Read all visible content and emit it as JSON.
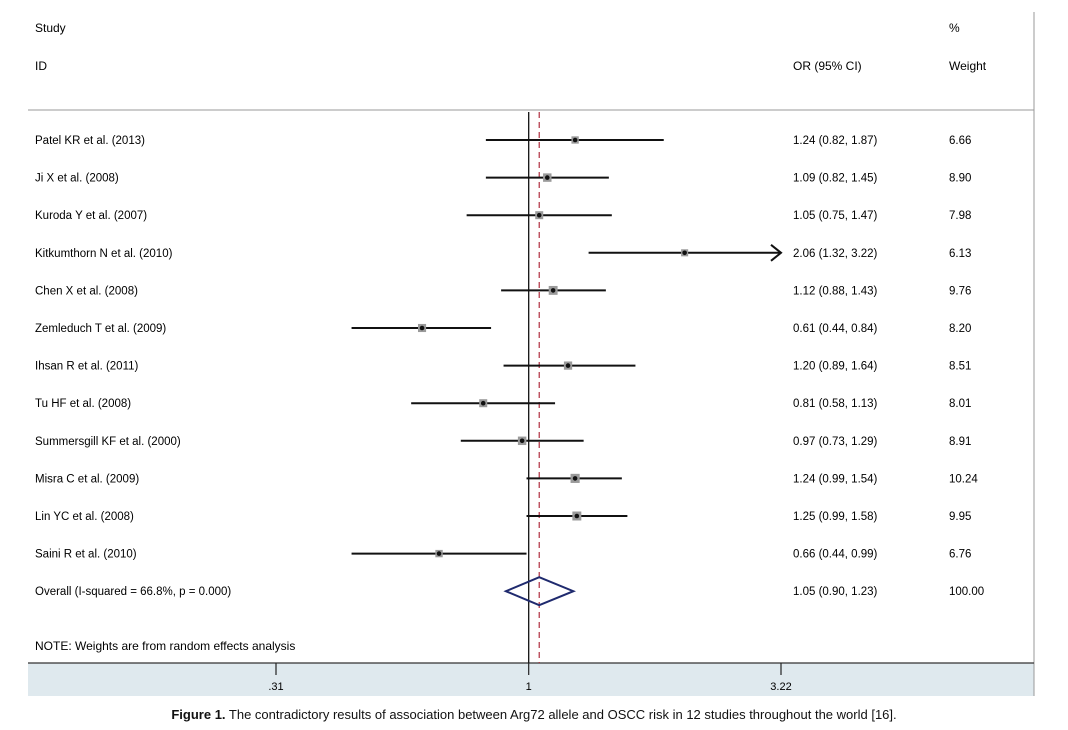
{
  "header": {
    "study_label": "Study",
    "id_label": "ID",
    "pct_label": "%",
    "or_label": "OR (95% CI)",
    "weight_label": "Weight"
  },
  "chart_data": {
    "type": "forest",
    "scale": "log",
    "x_ticks": [
      {
        "value": 0.31,
        "label": ".31"
      },
      {
        "value": 1,
        "label": "1"
      },
      {
        "value": 3.22,
        "label": "3.22"
      }
    ],
    "xlim": [
      0.31,
      3.22
    ],
    "null_line": 1,
    "overall_line": 1.05,
    "studies": [
      {
        "name": "Patel KR et al. (2013)",
        "or": 1.24,
        "lo": 0.82,
        "hi": 1.87,
        "or_text": "1.24 (0.82, 1.87)",
        "weight": 6.66,
        "weight_text": "6.66"
      },
      {
        "name": "Ji X et al. (2008)",
        "or": 1.09,
        "lo": 0.82,
        "hi": 1.45,
        "or_text": "1.09 (0.82, 1.45)",
        "weight": 8.9,
        "weight_text": "8.90"
      },
      {
        "name": "Kuroda Y et al. (2007)",
        "or": 1.05,
        "lo": 0.75,
        "hi": 1.47,
        "or_text": "1.05 (0.75, 1.47)",
        "weight": 7.98,
        "weight_text": "7.98"
      },
      {
        "name": "Kitkumthorn N et al. (2010)",
        "or": 2.06,
        "lo": 1.32,
        "hi": 3.22,
        "or_text": "2.06 (1.32, 3.22)",
        "weight": 6.13,
        "weight_text": "6.13",
        "arrow": true
      },
      {
        "name": "Chen X et al. (2008)",
        "or": 1.12,
        "lo": 0.88,
        "hi": 1.43,
        "or_text": "1.12 (0.88, 1.43)",
        "weight": 9.76,
        "weight_text": "9.76"
      },
      {
        "name": "Zemleduch T et al. (2009)",
        "or": 0.61,
        "lo": 0.44,
        "hi": 0.84,
        "or_text": "0.61 (0.44, 0.84)",
        "weight": 8.2,
        "weight_text": "8.20"
      },
      {
        "name": "Ihsan R et al. (2011)",
        "or": 1.2,
        "lo": 0.89,
        "hi": 1.64,
        "or_text": "1.20 (0.89, 1.64)",
        "weight": 8.51,
        "weight_text": "8.51"
      },
      {
        "name": "Tu HF et al. (2008)",
        "or": 0.81,
        "lo": 0.58,
        "hi": 1.13,
        "or_text": "0.81 (0.58, 1.13)",
        "weight": 8.01,
        "weight_text": "8.01"
      },
      {
        "name": "Summersgill KF et al. (2000)",
        "or": 0.97,
        "lo": 0.73,
        "hi": 1.29,
        "or_text": "0.97 (0.73, 1.29)",
        "weight": 8.91,
        "weight_text": "8.91"
      },
      {
        "name": "Misra C et al. (2009)",
        "or": 1.24,
        "lo": 0.99,
        "hi": 1.54,
        "or_text": "1.24 (0.99, 1.54)",
        "weight": 10.24,
        "weight_text": "10.24"
      },
      {
        "name": "Lin YC et al. (2008)",
        "or": 1.25,
        "lo": 0.99,
        "hi": 1.58,
        "or_text": "1.25 (0.99, 1.58)",
        "weight": 9.95,
        "weight_text": "9.95"
      },
      {
        "name": "Saini R et al. (2010)",
        "or": 0.66,
        "lo": 0.44,
        "hi": 0.99,
        "or_text": "0.66 (0.44, 0.99)",
        "weight": 6.76,
        "weight_text": "6.76"
      }
    ],
    "overall": {
      "name": "Overall  (I-squared = 66.8%, p = 0.000)",
      "or": 1.05,
      "lo": 0.9,
      "hi": 1.23,
      "or_text": "1.05 (0.90, 1.23)",
      "weight_text": "100.00"
    },
    "note": "NOTE: Weights are from random effects analysis",
    "colors": {
      "diamond": "#1f2a6e",
      "overall_line": "#b03040",
      "axis_band": "#dfe9ee"
    }
  },
  "caption": {
    "label": "Figure 1.",
    "text": " The contradictory results of association between Arg72 allele and OSCC risk in 12 studies throughout the world [16]."
  }
}
